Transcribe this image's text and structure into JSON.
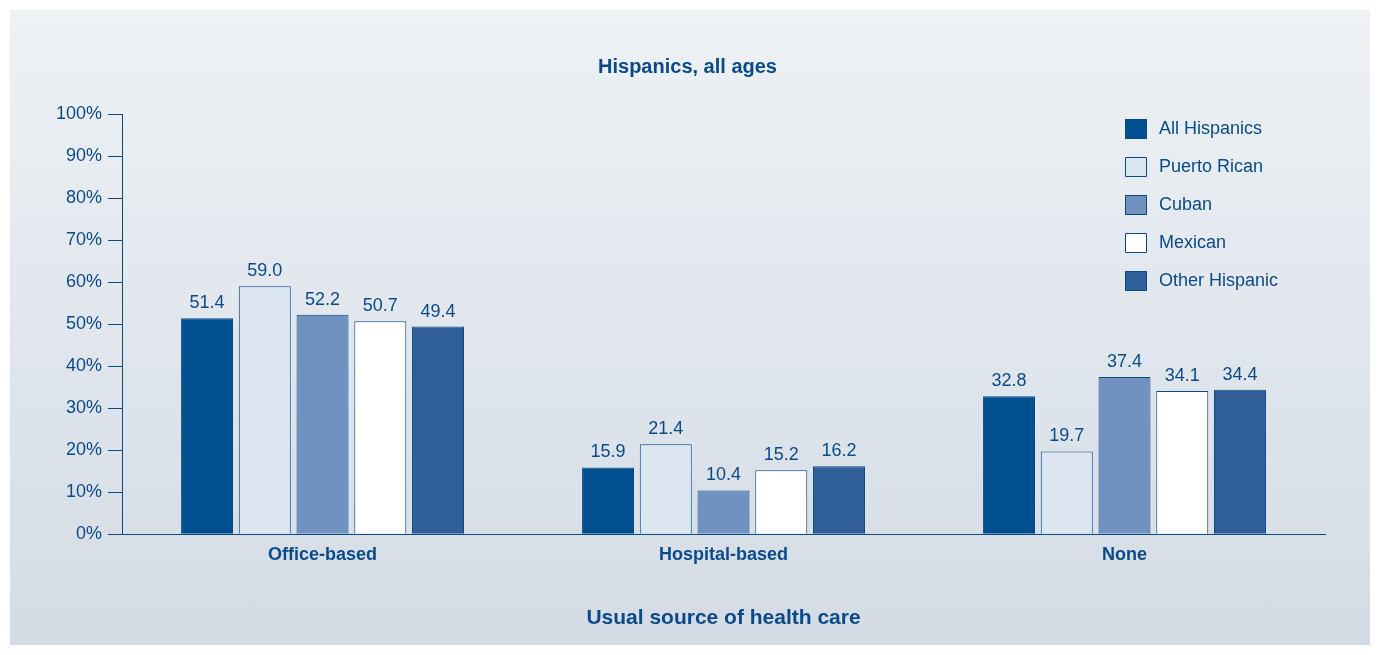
{
  "chart_data": {
    "type": "bar",
    "title": "Hispanics, all ages",
    "xlabel": "Usual source of health care",
    "categories": [
      "Office-based",
      "Hospital-based",
      "None"
    ],
    "series": [
      {
        "name": "All Hispanics",
        "color": "#004f8f",
        "values": [
          51.4,
          15.9,
          32.8
        ],
        "value_labels": [
          "51.4",
          "15.9",
          "32.8"
        ]
      },
      {
        "name": "Puerto Rican",
        "color": "#dce6f0",
        "values": [
          59.0,
          21.4,
          19.7
        ],
        "value_labels": [
          "59.0",
          "21.4",
          "19.7"
        ]
      },
      {
        "name": "Cuban",
        "color": "#7092c0",
        "values": [
          52.2,
          10.4,
          37.4
        ],
        "value_labels": [
          "52.2",
          "10.4",
          "37.4"
        ]
      },
      {
        "name": "Mexican",
        "color": "#ffffff",
        "values": [
          50.7,
          15.2,
          34.1
        ],
        "value_labels": [
          "50.7",
          "15.2",
          "34.1"
        ]
      },
      {
        "name": "Other Hispanic",
        "color": "#2f5f96",
        "values": [
          49.4,
          16.2,
          34.4
        ],
        "value_labels": [
          "49.4",
          "16.2",
          "34.4"
        ]
      }
    ],
    "ylim": [
      0,
      100
    ],
    "yticks": [
      {
        "value": 0,
        "label": "0%"
      },
      {
        "value": 10,
        "label": "10%"
      },
      {
        "value": 20,
        "label": "20%"
      },
      {
        "value": 30,
        "label": "30%"
      },
      {
        "value": 40,
        "label": "40%"
      },
      {
        "value": 50,
        "label": "50%"
      },
      {
        "value": 60,
        "label": "60%"
      },
      {
        "value": 70,
        "label": "70%"
      },
      {
        "value": 80,
        "label": "80%"
      },
      {
        "value": 90,
        "label": "90%"
      },
      {
        "value": 100,
        "label": "100%"
      }
    ],
    "grid": false,
    "legend": "top right"
  }
}
